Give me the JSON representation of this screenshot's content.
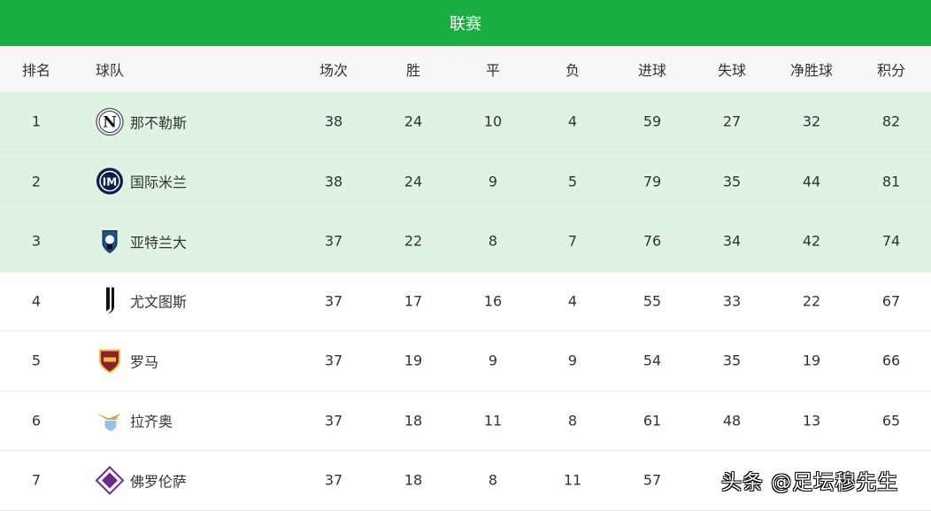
{
  "title": "联赛",
  "columns": [
    "排名",
    "球队",
    "场次",
    "胜",
    "平",
    "负",
    "进球",
    "失球",
    "净胜球",
    "积分"
  ],
  "rows": [
    {
      "rank": "1",
      "team": "那不勒斯",
      "logo": "napoli-logo",
      "played": "38",
      "w": "24",
      "d": "10",
      "l": "4",
      "gf": "59",
      "ga": "27",
      "gd": "32",
      "pts": "82",
      "highlight": true
    },
    {
      "rank": "2",
      "team": "国际米兰",
      "logo": "inter-logo",
      "played": "38",
      "w": "24",
      "d": "9",
      "l": "5",
      "gf": "79",
      "ga": "35",
      "gd": "44",
      "pts": "81",
      "highlight": true
    },
    {
      "rank": "3",
      "team": "亚特兰大",
      "logo": "atalanta-logo",
      "played": "37",
      "w": "22",
      "d": "8",
      "l": "7",
      "gf": "76",
      "ga": "34",
      "gd": "42",
      "pts": "74",
      "highlight": true
    },
    {
      "rank": "4",
      "team": "尤文图斯",
      "logo": "juventus-logo",
      "played": "37",
      "w": "17",
      "d": "16",
      "l": "4",
      "gf": "55",
      "ga": "33",
      "gd": "22",
      "pts": "67",
      "highlight": false
    },
    {
      "rank": "5",
      "team": "罗马",
      "logo": "roma-logo",
      "played": "37",
      "w": "19",
      "d": "9",
      "l": "9",
      "gf": "54",
      "ga": "35",
      "gd": "19",
      "pts": "66",
      "highlight": false
    },
    {
      "rank": "6",
      "team": "拉齐奥",
      "logo": "lazio-logo",
      "played": "37",
      "w": "18",
      "d": "11",
      "l": "8",
      "gf": "61",
      "ga": "48",
      "gd": "13",
      "pts": "65",
      "highlight": false
    },
    {
      "rank": "7",
      "team": "佛罗伦萨",
      "logo": "fiorentina-logo",
      "played": "37",
      "w": "18",
      "d": "8",
      "l": "11",
      "gf": "57",
      "highlight": false
    }
  ],
  "watermark": "头条 @足坛穆先生",
  "colors": {
    "header": "#1aaf40",
    "highlight": "#dff3e2"
  }
}
